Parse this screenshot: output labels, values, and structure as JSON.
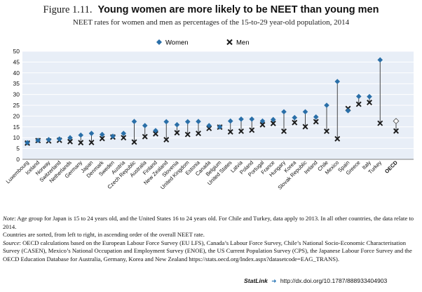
{
  "figure": {
    "number": "Figure 1.11.",
    "title": "Young women are more likely to be NEET than young men",
    "subtitle": "NEET rates for women and men as percentages of the 15-to-29 year-old population, 2014"
  },
  "chart_data": {
    "type": "scatter",
    "title": "Young women are more likely to be NEET than young men",
    "ylim": [
      0,
      50
    ],
    "yticks": [
      0,
      5,
      10,
      15,
      20,
      25,
      30,
      35,
      40,
      45,
      50
    ],
    "grid": true,
    "legend_position": "top",
    "categories": [
      "Luxembourg",
      "Iceland",
      "Norway",
      "Switzerland",
      "Netherlands",
      "Germany",
      "Japan",
      "Denmark",
      "Sweden",
      "Austria",
      "Czech Republic",
      "Australia",
      "Finland",
      "New Zealand",
      "Slovenia",
      "United Kingdom",
      "Estonia",
      "Canada",
      "Belgium",
      "United States",
      "Latvia",
      "Poland",
      "Portugal",
      "France",
      "Hungary",
      "Korea",
      "Slovak Republic",
      "Ireland",
      "Chile",
      "Mexico",
      "Spain",
      "Greece",
      "Italy",
      "Turkey"
    ],
    "series": [
      {
        "name": "Women",
        "marker": "diamond",
        "color": "#2a6fa8",
        "values": [
          7.7,
          8.8,
          9.1,
          9.4,
          10.0,
          11.2,
          12.0,
          11.5,
          10.7,
          12.0,
          17.5,
          15.6,
          13.3,
          17.4,
          16.0,
          17.4,
          17.5,
          15.6,
          15.0,
          17.7,
          18.6,
          18.6,
          17.7,
          18.4,
          22.0,
          19.3,
          22.0,
          19.6,
          25.0,
          36.0,
          22.5,
          29.1,
          29.0,
          46.0
        ]
      },
      {
        "name": "Men",
        "marker": "x",
        "color": "#1a1a1a",
        "values": [
          7.5,
          8.7,
          8.5,
          8.8,
          8.2,
          7.7,
          7.8,
          9.6,
          10.3,
          10.0,
          8.0,
          10.5,
          11.8,
          9.1,
          12.3,
          11.5,
          12.0,
          14.3,
          14.9,
          12.7,
          13.0,
          13.5,
          16.0,
          16.6,
          13.0,
          17.0,
          15.1,
          17.4,
          13.0,
          9.5,
          23.5,
          25.5,
          26.3,
          16.7
        ]
      }
    ],
    "oecd": {
      "label": "OECD",
      "women": 17.7,
      "men": 13.1
    }
  },
  "notes": {
    "note_label": "Note",
    "note_text": ": Age group for Japan is 15 to 24 years old, and the United States 16 to 24 years old. For Chile and Turkey, data apply to 2013. In all other countries, the data relate to 2014.",
    "sort_text": "Countries are sorted, from left to right, in ascending order of the overall NEET rate.",
    "source_label": "Source",
    "source_text": ": OECD calculations based on the European Labour Force Survey (EU LFS), Canada’s Labour Force Survey, Chile’s National Socio-Economic Characterisation Survey (CASEN), Mexico’s National Occupation and Employment Survey (ENOE), the US Current Population Survey (CPS), the Japanese Labour Force Survey and the OECD Education Database for Australia, Germany, Korea and New Zealand https://stats.oecd.org/Index.aspx?datasetcode=EAG_TRANS)."
  },
  "statlink": {
    "name": "StatLink",
    "url": "http://dx.doi.org/10.1787/888933404903"
  }
}
